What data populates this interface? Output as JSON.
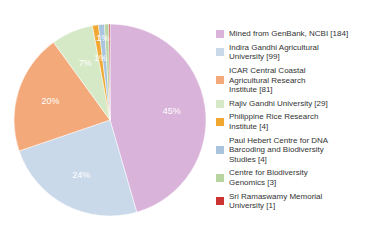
{
  "chart_data": {
    "type": "pie",
    "categories": [
      "Mined from GenBank, NCBI [184]",
      "Indira Gandhi Agricultural\nUniversity [99]",
      "ICAR Central Coastal\nAgricultural Research\nInstitute [81]",
      "Rajiv Gandhi University [29]",
      "Philippine Rice Research\nInstitute [4]",
      "Paul Hebert Centre for DNA\nBarcoding and Biodiversity\nStudies [4]",
      "Centre for Biodiversity\nGenomics [3]",
      "Sri Ramaswamy Memorial\nUniversity [1]"
    ],
    "values": [
      45,
      24,
      20,
      7,
      1,
      1,
      0.7,
      0.2
    ],
    "value_labels": [
      "45%",
      "24%",
      "20%",
      "7%",
      "1%",
      "1%",
      null,
      null
    ],
    "data_labels": true,
    "colors": [
      "#d9b3d9",
      "#c9d9ea",
      "#f4a97a",
      "#d6e9c6",
      "#f0a830",
      "#aac4dd",
      "#b8d4a0",
      "#cc3333"
    ],
    "legend": "right"
  }
}
